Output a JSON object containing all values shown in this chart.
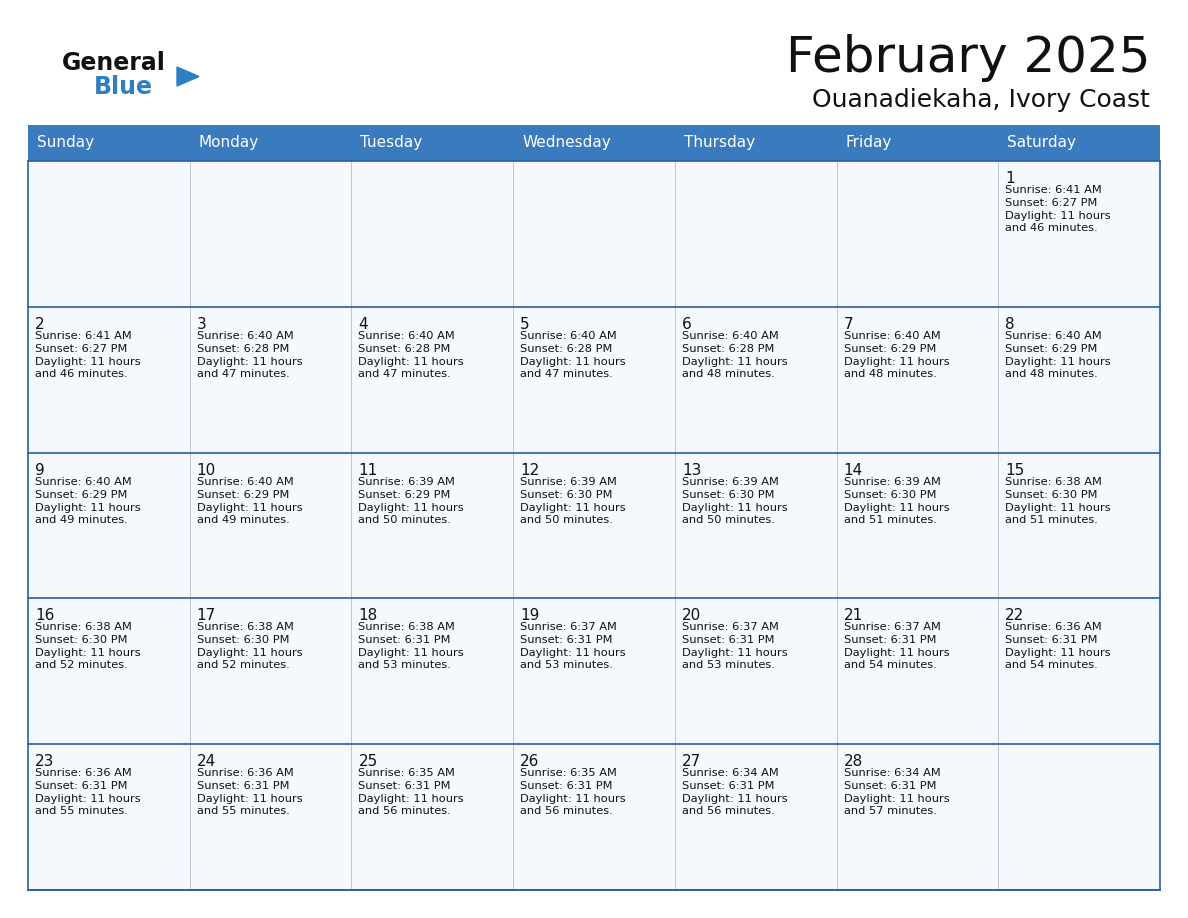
{
  "title": "February 2025",
  "subtitle": "Ouanadiekaha, Ivory Coast",
  "header_color": "#3a7abf",
  "header_text_color": "#ffffff",
  "cell_bg_even": "#f2f6fb",
  "cell_bg_odd": "#ffffff",
  "border_color": "#2a5fa5",
  "days_of_week": [
    "Sunday",
    "Monday",
    "Tuesday",
    "Wednesday",
    "Thursday",
    "Friday",
    "Saturday"
  ],
  "calendar_data": [
    [
      null,
      null,
      null,
      null,
      null,
      null,
      {
        "day": 1,
        "sunrise": "6:41 AM",
        "sunset": "6:27 PM",
        "daylight": "11 hours",
        "daylight2": "and 46 minutes."
      }
    ],
    [
      {
        "day": 2,
        "sunrise": "6:41 AM",
        "sunset": "6:27 PM",
        "daylight": "11 hours",
        "daylight2": "and 46 minutes."
      },
      {
        "day": 3,
        "sunrise": "6:40 AM",
        "sunset": "6:28 PM",
        "daylight": "11 hours",
        "daylight2": "and 47 minutes."
      },
      {
        "day": 4,
        "sunrise": "6:40 AM",
        "sunset": "6:28 PM",
        "daylight": "11 hours",
        "daylight2": "and 47 minutes."
      },
      {
        "day": 5,
        "sunrise": "6:40 AM",
        "sunset": "6:28 PM",
        "daylight": "11 hours",
        "daylight2": "and 47 minutes."
      },
      {
        "day": 6,
        "sunrise": "6:40 AM",
        "sunset": "6:28 PM",
        "daylight": "11 hours",
        "daylight2": "and 48 minutes."
      },
      {
        "day": 7,
        "sunrise": "6:40 AM",
        "sunset": "6:29 PM",
        "daylight": "11 hours",
        "daylight2": "and 48 minutes."
      },
      {
        "day": 8,
        "sunrise": "6:40 AM",
        "sunset": "6:29 PM",
        "daylight": "11 hours",
        "daylight2": "and 48 minutes."
      }
    ],
    [
      {
        "day": 9,
        "sunrise": "6:40 AM",
        "sunset": "6:29 PM",
        "daylight": "11 hours",
        "daylight2": "and 49 minutes."
      },
      {
        "day": 10,
        "sunrise": "6:40 AM",
        "sunset": "6:29 PM",
        "daylight": "11 hours",
        "daylight2": "and 49 minutes."
      },
      {
        "day": 11,
        "sunrise": "6:39 AM",
        "sunset": "6:29 PM",
        "daylight": "11 hours",
        "daylight2": "and 50 minutes."
      },
      {
        "day": 12,
        "sunrise": "6:39 AM",
        "sunset": "6:30 PM",
        "daylight": "11 hours",
        "daylight2": "and 50 minutes."
      },
      {
        "day": 13,
        "sunrise": "6:39 AM",
        "sunset": "6:30 PM",
        "daylight": "11 hours",
        "daylight2": "and 50 minutes."
      },
      {
        "day": 14,
        "sunrise": "6:39 AM",
        "sunset": "6:30 PM",
        "daylight": "11 hours",
        "daylight2": "and 51 minutes."
      },
      {
        "day": 15,
        "sunrise": "6:38 AM",
        "sunset": "6:30 PM",
        "daylight": "11 hours",
        "daylight2": "and 51 minutes."
      }
    ],
    [
      {
        "day": 16,
        "sunrise": "6:38 AM",
        "sunset": "6:30 PM",
        "daylight": "11 hours",
        "daylight2": "and 52 minutes."
      },
      {
        "day": 17,
        "sunrise": "6:38 AM",
        "sunset": "6:30 PM",
        "daylight": "11 hours",
        "daylight2": "and 52 minutes."
      },
      {
        "day": 18,
        "sunrise": "6:38 AM",
        "sunset": "6:31 PM",
        "daylight": "11 hours",
        "daylight2": "and 53 minutes."
      },
      {
        "day": 19,
        "sunrise": "6:37 AM",
        "sunset": "6:31 PM",
        "daylight": "11 hours",
        "daylight2": "and 53 minutes."
      },
      {
        "day": 20,
        "sunrise": "6:37 AM",
        "sunset": "6:31 PM",
        "daylight": "11 hours",
        "daylight2": "and 53 minutes."
      },
      {
        "day": 21,
        "sunrise": "6:37 AM",
        "sunset": "6:31 PM",
        "daylight": "11 hours",
        "daylight2": "and 54 minutes."
      },
      {
        "day": 22,
        "sunrise": "6:36 AM",
        "sunset": "6:31 PM",
        "daylight": "11 hours",
        "daylight2": "and 54 minutes."
      }
    ],
    [
      {
        "day": 23,
        "sunrise": "6:36 AM",
        "sunset": "6:31 PM",
        "daylight": "11 hours",
        "daylight2": "and 55 minutes."
      },
      {
        "day": 24,
        "sunrise": "6:36 AM",
        "sunset": "6:31 PM",
        "daylight": "11 hours",
        "daylight2": "and 55 minutes."
      },
      {
        "day": 25,
        "sunrise": "6:35 AM",
        "sunset": "6:31 PM",
        "daylight": "11 hours",
        "daylight2": "and 56 minutes."
      },
      {
        "day": 26,
        "sunrise": "6:35 AM",
        "sunset": "6:31 PM",
        "daylight": "11 hours",
        "daylight2": "and 56 minutes."
      },
      {
        "day": 27,
        "sunrise": "6:34 AM",
        "sunset": "6:31 PM",
        "daylight": "11 hours",
        "daylight2": "and 56 minutes."
      },
      {
        "day": 28,
        "sunrise": "6:34 AM",
        "sunset": "6:31 PM",
        "daylight": "11 hours",
        "daylight2": "and 57 minutes."
      },
      null
    ]
  ],
  "logo_general_color": "#111111",
  "logo_blue_color": "#2e7fc1",
  "bg_color": "#ffffff",
  "title_fontsize": 36,
  "subtitle_fontsize": 18,
  "header_fontsize": 11,
  "day_num_fontsize": 11,
  "cell_text_fontsize": 8.2
}
